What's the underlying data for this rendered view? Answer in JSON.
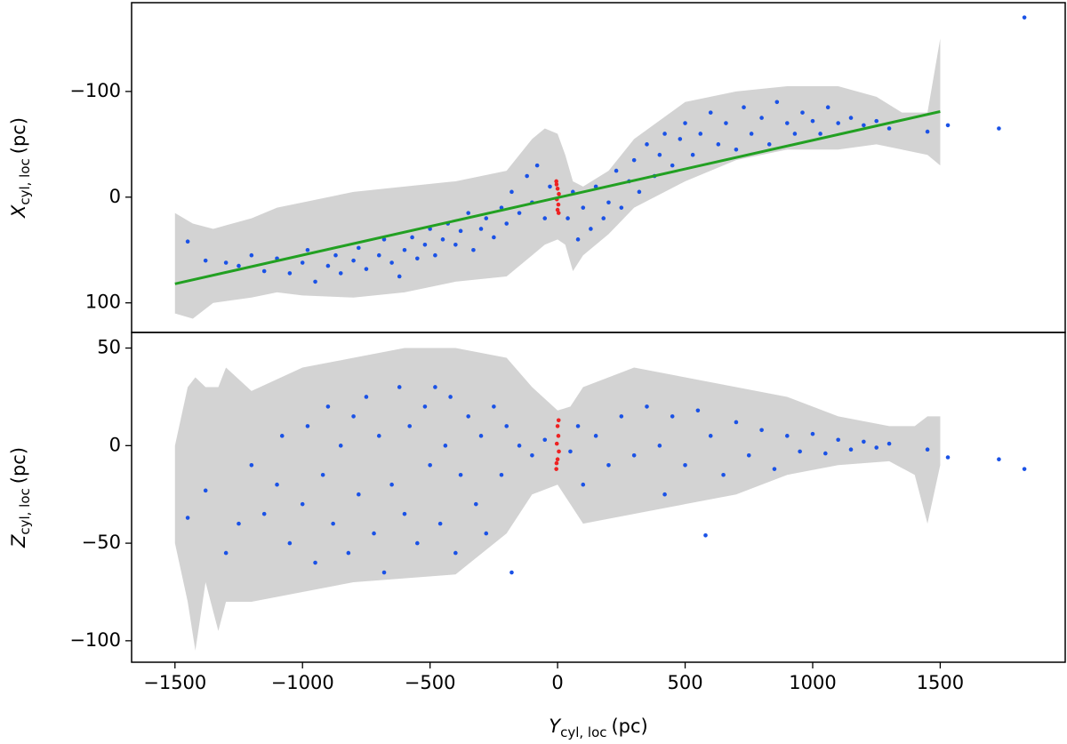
{
  "chart_data": [
    {
      "type": "scatter",
      "ylabel": {
        "symbol": "X",
        "subscript": "cyl, loc",
        "unit": "(pc)"
      },
      "xlim": [
        -1670,
        1990
      ],
      "ylim": [
        128,
        -184
      ],
      "yticks": [
        {
          "value": -100,
          "label": "−100"
        },
        0,
        100
      ],
      "band": {
        "color": "#d3d3d3",
        "x": [
          -1500,
          -1430,
          -1350,
          -1200,
          -1100,
          -1000,
          -800,
          -600,
          -400,
          -200,
          -100,
          -50,
          0,
          30,
          60,
          100,
          200,
          300,
          500,
          700,
          900,
          1100,
          1250,
          1350,
          1450,
          1500
        ],
        "lower": [
          15,
          25,
          30,
          20,
          10,
          5,
          -5,
          -10,
          -15,
          -25,
          -55,
          -65,
          -60,
          -40,
          -15,
          -10,
          -25,
          -55,
          -90,
          -100,
          -105,
          -105,
          -95,
          -80,
          -80,
          -150
        ],
        "upper": [
          110,
          115,
          100,
          95,
          90,
          93,
          95,
          90,
          80,
          75,
          55,
          45,
          40,
          45,
          70,
          55,
          35,
          10,
          -15,
          -35,
          -45,
          -45,
          -50,
          -45,
          -40,
          -30
        ]
      },
      "series": [
        {
          "color": "#1a52e6",
          "x": [
            -1450,
            -1380,
            -1300,
            -1250,
            -1200,
            -1150,
            -1100,
            -1050,
            -1000,
            -980,
            -950,
            -900,
            -870,
            -850,
            -800,
            -780,
            -750,
            -700,
            -680,
            -650,
            -620,
            -600,
            -570,
            -550,
            -520,
            -500,
            -480,
            -450,
            -430,
            -400,
            -380,
            -350,
            -330,
            -300,
            -280,
            -250,
            -220,
            -200,
            -180,
            -150,
            -120,
            -100,
            -80,
            -50,
            -30,
            40,
            60,
            80,
            100,
            130,
            150,
            180,
            200,
            230,
            250,
            280,
            300,
            320,
            350,
            380,
            400,
            420,
            450,
            480,
            500,
            530,
            560,
            600,
            630,
            660,
            700,
            730,
            760,
            800,
            830,
            860,
            900,
            930,
            960,
            1000,
            1030,
            1060,
            1100,
            1150,
            1200,
            1250,
            1300,
            1450,
            1530,
            1730,
            1830
          ],
          "values": [
            42,
            60,
            62,
            65,
            55,
            70,
            58,
            72,
            62,
            50,
            80,
            65,
            55,
            72,
            60,
            48,
            68,
            55,
            40,
            62,
            75,
            50,
            38,
            58,
            45,
            30,
            55,
            40,
            25,
            45,
            32,
            15,
            50,
            30,
            20,
            38,
            10,
            25,
            -5,
            15,
            -20,
            5,
            -30,
            20,
            -10,
            20,
            -5,
            40,
            10,
            30,
            -10,
            20,
            5,
            -25,
            10,
            -15,
            -35,
            -5,
            -50,
            -20,
            -40,
            -60,
            -30,
            -55,
            -70,
            -40,
            -60,
            -80,
            -50,
            -70,
            -45,
            -85,
            -60,
            -75,
            -50,
            -90,
            -70,
            -60,
            -80,
            -72,
            -60,
            -85,
            -70,
            -75,
            -68,
            -72,
            -65,
            -62,
            -68,
            -65,
            -170
          ]
        },
        {
          "color": "#ee2222",
          "x": [
            -5,
            0,
            5,
            -3,
            3,
            0,
            -4,
            4
          ],
          "values": [
            -15,
            -8,
            -3,
            2,
            7,
            12,
            -12,
            15
          ]
        }
      ],
      "line": {
        "color": "#22a022",
        "x": [
          -1500,
          1500
        ],
        "values": [
          82,
          -81
        ]
      }
    },
    {
      "type": "scatter",
      "ylabel": {
        "symbol": "Z",
        "subscript": "cyl, loc",
        "unit": "(pc)"
      },
      "xlabel": {
        "symbol": "Y",
        "subscript": "cyl, loc",
        "unit": "(pc)"
      },
      "xlim": [
        -1670,
        1990
      ],
      "ylim": [
        -111,
        58
      ],
      "xticks": [
        {
          "value": -1500,
          "label": "−1500"
        },
        {
          "value": -1000,
          "label": "−1000"
        },
        {
          "value": -500,
          "label": "−500"
        },
        0,
        500,
        1000,
        1500
      ],
      "yticks": [
        50,
        0,
        {
          "value": -50,
          "label": "−50"
        },
        {
          "value": -100,
          "label": "−100"
        }
      ],
      "band": {
        "color": "#d3d3d3",
        "x": [
          -1500,
          -1450,
          -1420,
          -1380,
          -1330,
          -1300,
          -1200,
          -1000,
          -800,
          -600,
          -400,
          -200,
          -100,
          0,
          50,
          100,
          300,
          500,
          700,
          900,
          1100,
          1300,
          1400,
          1450,
          1500
        ],
        "lower": [
          -50,
          -80,
          -105,
          -70,
          -95,
          -80,
          -80,
          -75,
          -70,
          -68,
          -66,
          -45,
          -25,
          -20,
          -30,
          -40,
          -35,
          -30,
          -25,
          -15,
          -10,
          -8,
          -15,
          -40,
          -10
        ],
        "upper": [
          0,
          30,
          35,
          30,
          30,
          40,
          28,
          40,
          45,
          50,
          50,
          45,
          30,
          18,
          20,
          30,
          40,
          35,
          30,
          25,
          15,
          10,
          10,
          15,
          15
        ]
      },
      "series": [
        {
          "color": "#1a52e6",
          "x": [
            -1450,
            -1380,
            -1300,
            -1250,
            -1200,
            -1150,
            -1100,
            -1080,
            -1050,
            -1000,
            -980,
            -950,
            -920,
            -900,
            -880,
            -850,
            -820,
            -800,
            -780,
            -750,
            -720,
            -700,
            -680,
            -650,
            -620,
            -600,
            -580,
            -550,
            -520,
            -500,
            -480,
            -460,
            -440,
            -420,
            -400,
            -380,
            -350,
            -320,
            -300,
            -280,
            -250,
            -220,
            -200,
            -180,
            -150,
            -100,
            -50,
            50,
            80,
            100,
            150,
            200,
            250,
            300,
            350,
            400,
            420,
            450,
            500,
            550,
            580,
            600,
            650,
            700,
            750,
            800,
            850,
            900,
            950,
            1000,
            1050,
            1100,
            1150,
            1200,
            1250,
            1300,
            1450,
            1530,
            1730,
            1830
          ],
          "values": [
            -37,
            -23,
            -55,
            -40,
            -10,
            -35,
            -20,
            5,
            -50,
            -30,
            10,
            -60,
            -15,
            20,
            -40,
            0,
            -55,
            15,
            -25,
            25,
            -45,
            5,
            -65,
            -20,
            30,
            -35,
            10,
            -50,
            20,
            -10,
            30,
            -40,
            0,
            25,
            -55,
            -15,
            15,
            -30,
            5,
            -45,
            20,
            -15,
            10,
            -65,
            0,
            -5,
            3,
            -3,
            10,
            -20,
            5,
            -10,
            15,
            -5,
            20,
            0,
            -25,
            15,
            -10,
            18,
            -46,
            5,
            -15,
            12,
            -5,
            8,
            -12,
            5,
            -3,
            6,
            -4,
            3,
            -2,
            2,
            -1,
            1,
            -2,
            -6,
            -7,
            -12
          ]
        },
        {
          "color": "#ee2222",
          "x": [
            -5,
            0,
            5,
            -3,
            3,
            0,
            -4,
            4
          ],
          "values": [
            -12,
            -7,
            -3,
            1,
            5,
            10,
            -9,
            13
          ]
        }
      ]
    }
  ]
}
